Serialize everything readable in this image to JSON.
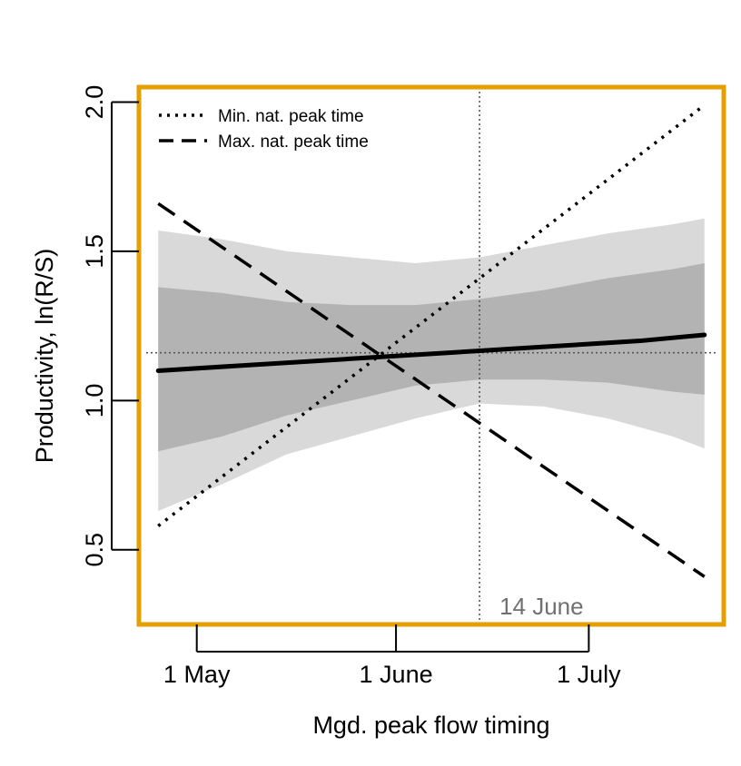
{
  "chart_data": {
    "type": "line",
    "title": "",
    "xlabel": "Mgd. peak flow timing",
    "ylabel": "Productivity, ln(R/S)",
    "x_unit": "day of year",
    "xlim": [
      112,
      203
    ],
    "ylim": [
      0.25,
      2.05
    ],
    "x_ticks": [
      {
        "value": 121,
        "label": "1 May"
      },
      {
        "value": 152,
        "label": "1 June"
      },
      {
        "value": 182,
        "label": "1 July"
      }
    ],
    "y_ticks": [
      {
        "value": 0.5,
        "label": "0.5"
      },
      {
        "value": 1.0,
        "label": "1.0"
      },
      {
        "value": 1.5,
        "label": "1.5"
      },
      {
        "value": 2.0,
        "label": "2.0"
      }
    ],
    "reference_lines": {
      "vertical_x": 165,
      "vertical_label": "14 June",
      "horizontal_y": 1.16
    },
    "bands": [
      {
        "level": "outer",
        "x": [
          115,
          125,
          135,
          145,
          155,
          165,
          175,
          185,
          195,
          200
        ],
        "lower": [
          0.63,
          0.72,
          0.82,
          0.88,
          0.94,
          0.99,
          0.98,
          0.94,
          0.88,
          0.84
        ],
        "upper": [
          1.57,
          1.54,
          1.5,
          1.48,
          1.46,
          1.48,
          1.52,
          1.56,
          1.59,
          1.61
        ]
      },
      {
        "level": "inner",
        "x": [
          115,
          125,
          135,
          145,
          155,
          165,
          175,
          185,
          195,
          200
        ],
        "lower": [
          0.83,
          0.88,
          0.95,
          1.0,
          1.05,
          1.07,
          1.07,
          1.06,
          1.03,
          1.02
        ],
        "upper": [
          1.38,
          1.36,
          1.33,
          1.32,
          1.32,
          1.34,
          1.37,
          1.41,
          1.44,
          1.46
        ]
      }
    ],
    "series": [
      {
        "name": "Min. nat. peak time",
        "style": "dotted",
        "x": [
          115,
          200
        ],
        "y": [
          0.58,
          1.99
        ]
      },
      {
        "name": "Max. nat. peak time",
        "style": "dashed",
        "x": [
          115,
          200
        ],
        "y": [
          1.66,
          0.41
        ]
      },
      {
        "style": "solid",
        "x": [
          115,
          130,
          145,
          160,
          175,
          190,
          200
        ],
        "y": [
          1.1,
          1.12,
          1.14,
          1.16,
          1.18,
          1.2,
          1.22
        ]
      }
    ],
    "legend": {
      "position": "top-left",
      "entries": [
        "Min. nat. peak time",
        "Max. nat. peak time"
      ]
    },
    "grid": false,
    "colors": {
      "frame": "#E69F00",
      "outer_band": "#D9D9D9",
      "inner_band": "#B3B3B3",
      "lines": "#000000",
      "reference": "#555555",
      "annotation": "#707070"
    }
  }
}
